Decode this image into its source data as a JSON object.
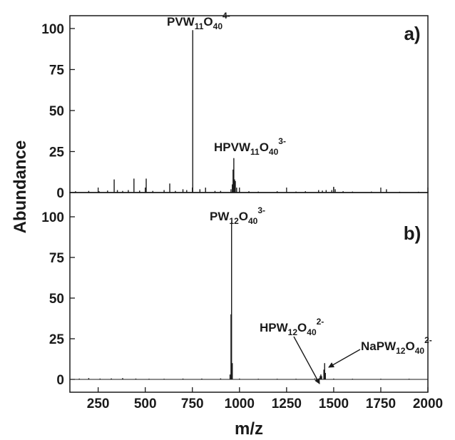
{
  "chart_data": {
    "type": "line",
    "x_label": "m/z",
    "y_label": "Abundance",
    "xlim": [
      100,
      2000
    ],
    "x_ticks": [
      "250",
      "500",
      "750",
      "1000",
      "1250",
      "1500",
      "1750",
      "2000"
    ],
    "x_tick_values": [
      250,
      500,
      750,
      1000,
      1250,
      1500,
      1750,
      2000
    ],
    "y_ticks": [
      "0",
      "25",
      "50",
      "75",
      "100"
    ],
    "y_tick_values": [
      0,
      25,
      50,
      75,
      100
    ],
    "ylim": [
      0,
      100
    ],
    "grid": false,
    "panels": [
      {
        "label": "a)",
        "peaks": [
          {
            "mz": 130,
            "ab": 0.8
          },
          {
            "mz": 200,
            "ab": 1.0
          },
          {
            "mz": 255,
            "ab": 0.8
          },
          {
            "mz": 300,
            "ab": 1.2
          },
          {
            "mz": 335,
            "ab": 8.0
          },
          {
            "mz": 352,
            "ab": 1.5
          },
          {
            "mz": 380,
            "ab": 1.0
          },
          {
            "mz": 410,
            "ab": 1.5
          },
          {
            "mz": 440,
            "ab": 8.5
          },
          {
            "mz": 470,
            "ab": 1.2
          },
          {
            "mz": 505,
            "ab": 8.5
          },
          {
            "mz": 540,
            "ab": 1.0
          },
          {
            "mz": 600,
            "ab": 1.5
          },
          {
            "mz": 630,
            "ab": 5.5
          },
          {
            "mz": 660,
            "ab": 1.0
          },
          {
            "mz": 700,
            "ab": 2.0
          },
          {
            "mz": 720,
            "ab": 1.5
          },
          {
            "mz": 752,
            "ab": 99
          },
          {
            "mz": 790,
            "ab": 2.0
          },
          {
            "mz": 820,
            "ab": 3.0
          },
          {
            "mz": 870,
            "ab": 1.0
          },
          {
            "mz": 900,
            "ab": 1.0
          },
          {
            "mz": 955,
            "ab": 2.0
          },
          {
            "mz": 962,
            "ab": 5.0
          },
          {
            "mz": 966,
            "ab": 14.0
          },
          {
            "mz": 970,
            "ab": 21.0
          },
          {
            "mz": 974,
            "ab": 8.0
          },
          {
            "mz": 978,
            "ab": 7.0
          },
          {
            "mz": 985,
            "ab": 3.0
          },
          {
            "mz": 1000,
            "ab": 1.0
          },
          {
            "mz": 1050,
            "ab": 0.8
          },
          {
            "mz": 1100,
            "ab": 0.6
          },
          {
            "mz": 1200,
            "ab": 0.8
          },
          {
            "mz": 1300,
            "ab": 0.6
          },
          {
            "mz": 1350,
            "ab": 0.8
          },
          {
            "mz": 1420,
            "ab": 1.5
          },
          {
            "mz": 1440,
            "ab": 1.2
          },
          {
            "mz": 1460,
            "ab": 1.5
          },
          {
            "mz": 1490,
            "ab": 1.5
          },
          {
            "mz": 1500,
            "ab": 3.5
          },
          {
            "mz": 1508,
            "ab": 2.0
          },
          {
            "mz": 1550,
            "ab": 0.8
          },
          {
            "mz": 1600,
            "ab": 0.6
          },
          {
            "mz": 1700,
            "ab": 0.6
          },
          {
            "mz": 1780,
            "ab": 2.0
          },
          {
            "mz": 1850,
            "ab": 0.5
          },
          {
            "mz": 1950,
            "ab": 0.5
          }
        ],
        "annotations": [
          {
            "base": "PVW",
            "s1": "11",
            "mid": "O",
            "s2": "40",
            "sup": "4-"
          },
          {
            "base": "HPVW",
            "s1": "11",
            "mid": "O",
            "s2": "40",
            "sup": "3-"
          }
        ]
      },
      {
        "label": "b)",
        "peaks": [
          {
            "mz": 150,
            "ab": 0.5
          },
          {
            "mz": 200,
            "ab": 0.8
          },
          {
            "mz": 260,
            "ab": 0.5
          },
          {
            "mz": 320,
            "ab": 0.6
          },
          {
            "mz": 380,
            "ab": 0.8
          },
          {
            "mz": 450,
            "ab": 0.5
          },
          {
            "mz": 520,
            "ab": 0.4
          },
          {
            "mz": 600,
            "ab": 0.4
          },
          {
            "mz": 700,
            "ab": 0.5
          },
          {
            "mz": 800,
            "ab": 0.5
          },
          {
            "mz": 900,
            "ab": 0.6
          },
          {
            "mz": 950,
            "ab": 3.0
          },
          {
            "mz": 955,
            "ab": 40.0
          },
          {
            "mz": 958,
            "ab": 97.0
          },
          {
            "mz": 962,
            "ab": 10.0
          },
          {
            "mz": 1000,
            "ab": 0.5
          },
          {
            "mz": 1100,
            "ab": 0.4
          },
          {
            "mz": 1200,
            "ab": 0.4
          },
          {
            "mz": 1300,
            "ab": 0.4
          },
          {
            "mz": 1400,
            "ab": 0.6
          },
          {
            "mz": 1428,
            "ab": 2.0
          },
          {
            "mz": 1432,
            "ab": 3.0
          },
          {
            "mz": 1436,
            "ab": 2.0
          },
          {
            "mz": 1448,
            "ab": 6.0
          },
          {
            "mz": 1452,
            "ab": 10.0
          },
          {
            "mz": 1456,
            "ab": 4.0
          },
          {
            "mz": 1500,
            "ab": 0.5
          },
          {
            "mz": 1600,
            "ab": 0.4
          },
          {
            "mz": 1750,
            "ab": 0.4
          },
          {
            "mz": 1900,
            "ab": 0.4
          }
        ],
        "annotations": [
          {
            "base": "PW",
            "s1": "12",
            "mid": "O",
            "s2": "40",
            "sup": "3-"
          },
          {
            "base": "HPW",
            "s1": "12",
            "mid": "O",
            "s2": "40",
            "sup": "2-"
          },
          {
            "base": "NaPW",
            "s1": "12",
            "mid": "O",
            "s2": "40",
            "sup": "2-"
          }
        ]
      }
    ]
  }
}
